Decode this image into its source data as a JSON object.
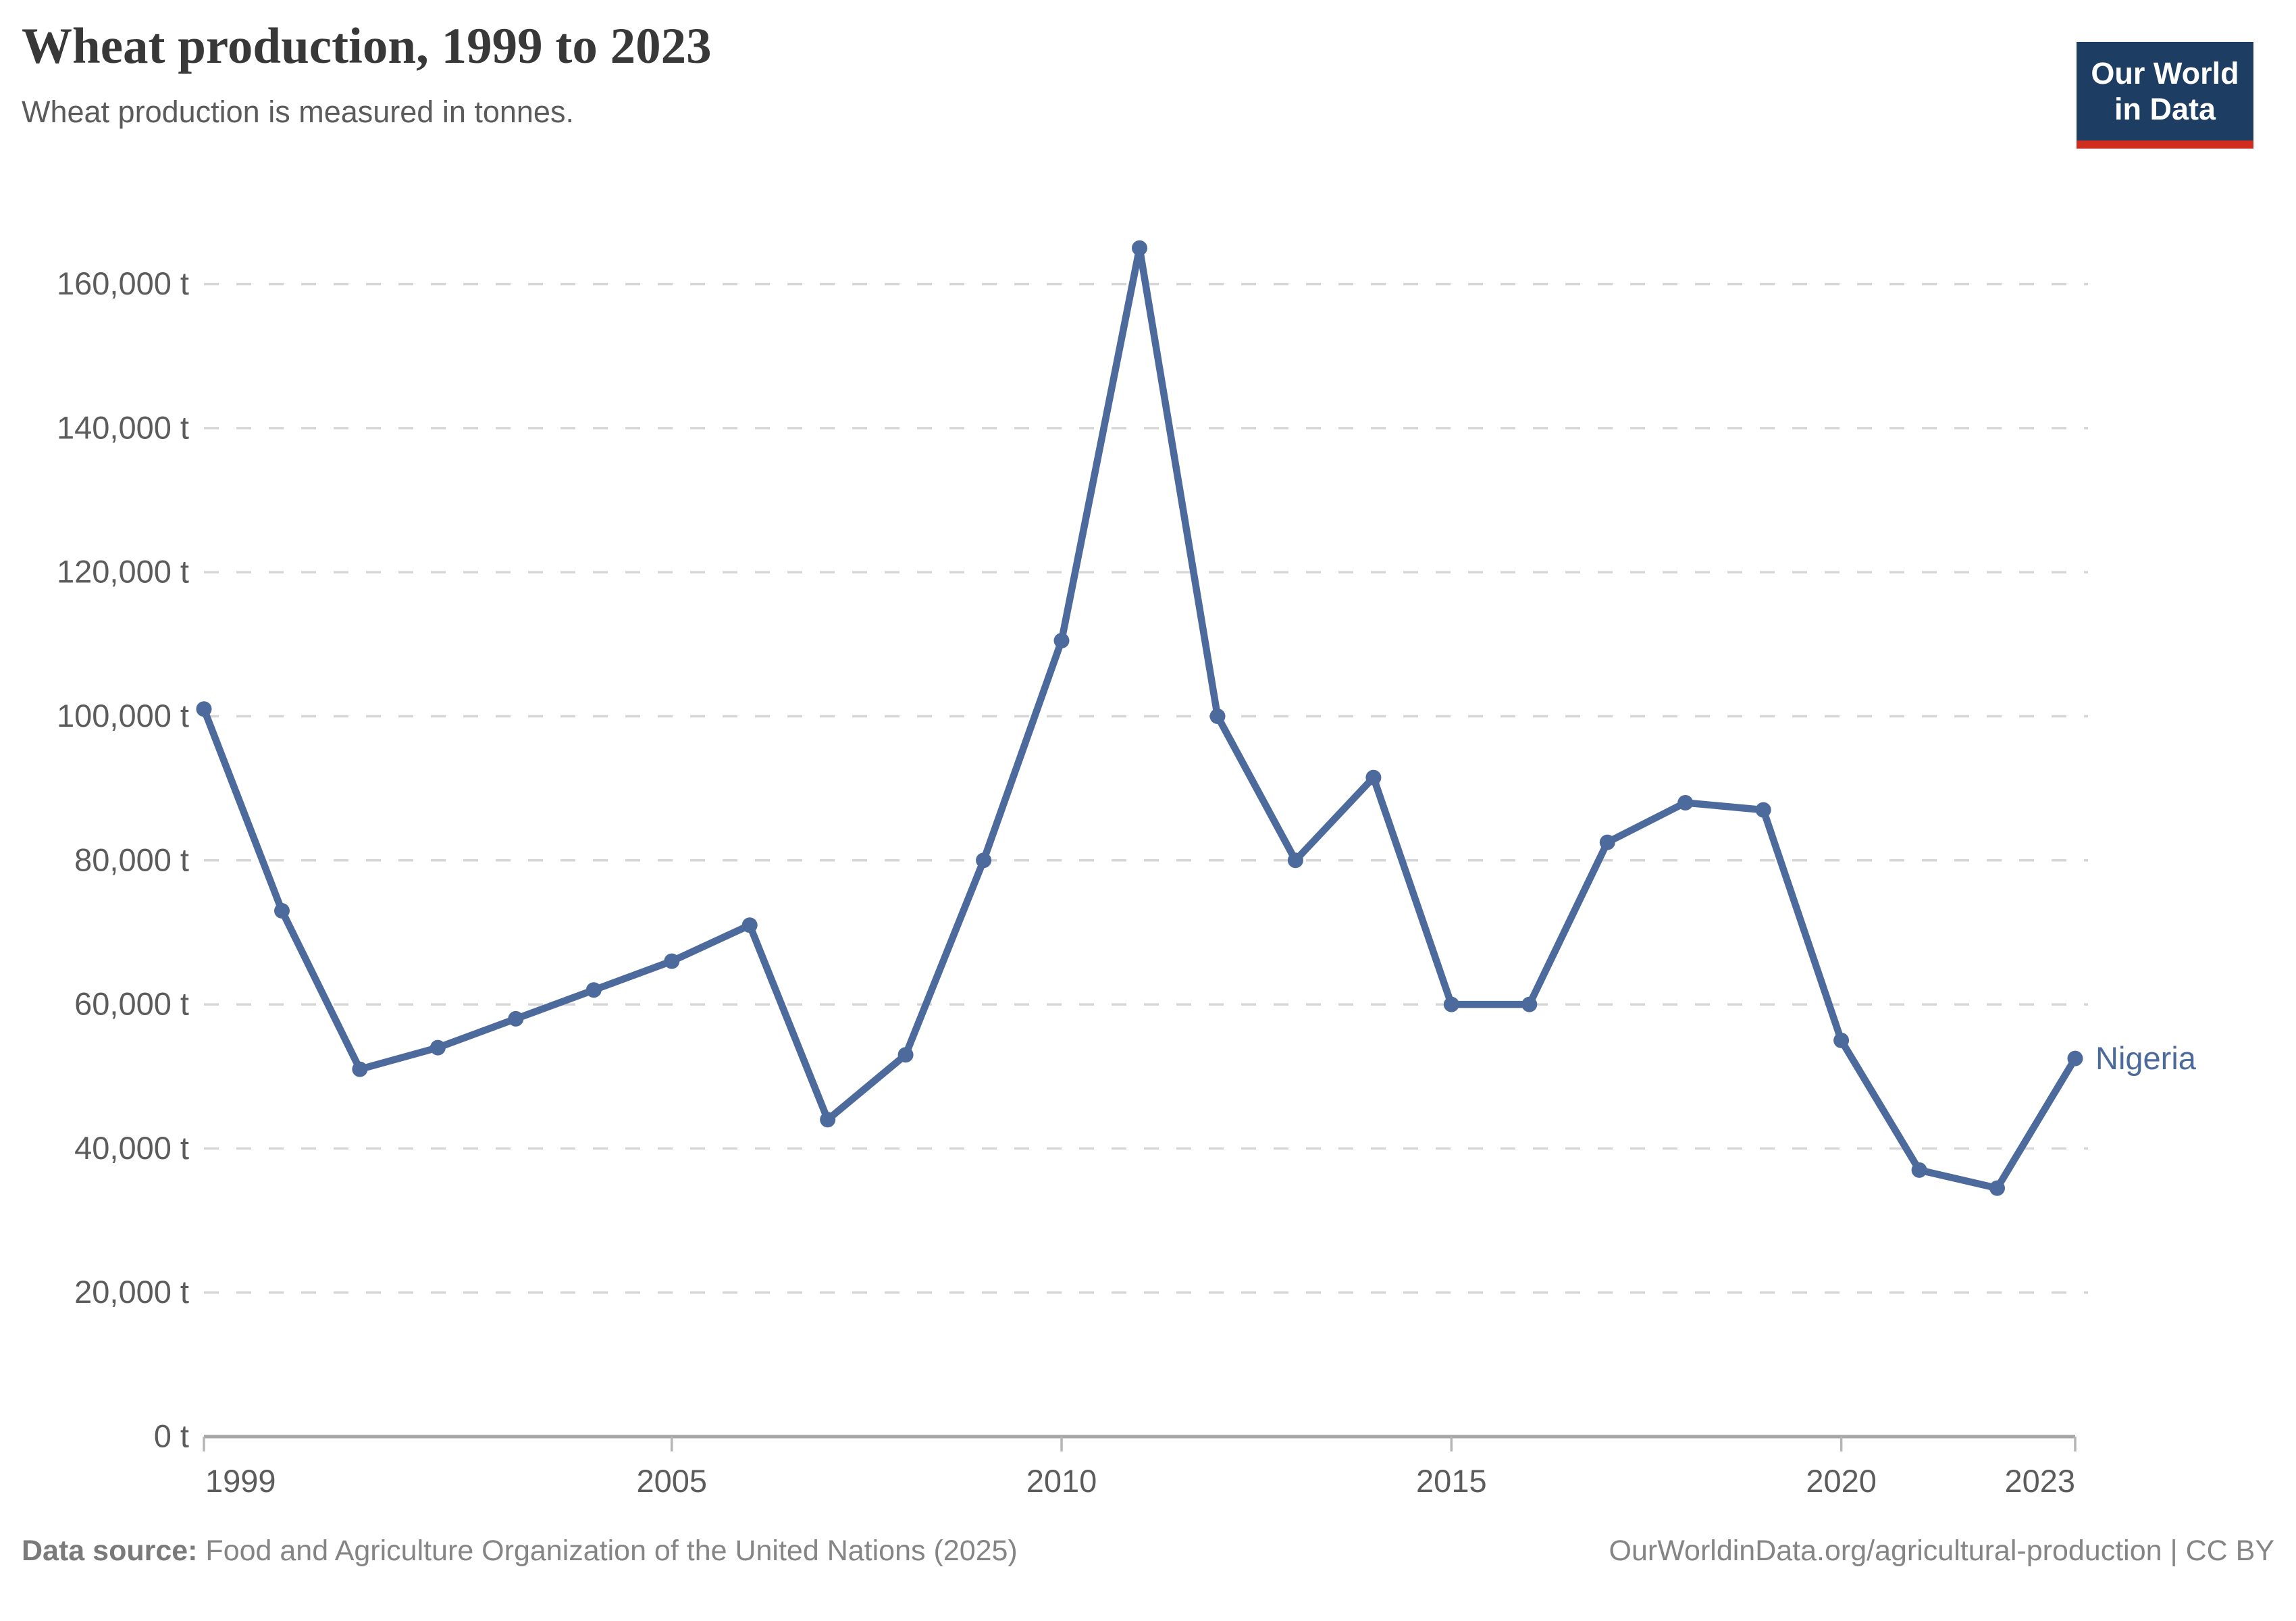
{
  "header": {
    "title": "Wheat production, 1999 to 2023",
    "subtitle": "Wheat production is measured in tonnes.",
    "logo": {
      "line1": "Our World",
      "line2": "in Data"
    }
  },
  "chart_data": {
    "type": "line",
    "title": "Wheat production, 1999 to 2023",
    "xlabel": "",
    "ylabel": "",
    "unit_suffix": " t",
    "x": [
      1999,
      2000,
      2001,
      2002,
      2003,
      2004,
      2005,
      2006,
      2007,
      2008,
      2009,
      2010,
      2011,
      2012,
      2013,
      2014,
      2015,
      2016,
      2017,
      2018,
      2019,
      2020,
      2021,
      2022,
      2023
    ],
    "series": [
      {
        "name": "Nigeria",
        "values": [
          101000,
          73000,
          51000,
          54000,
          58000,
          62000,
          66000,
          71000,
          44000,
          53000,
          80000,
          110500,
          165000,
          100000,
          80000,
          91500,
          60000,
          60000,
          82500,
          88000,
          87000,
          55000,
          37000,
          34500,
          52500
        ]
      }
    ],
    "ylim": [
      0,
      165000
    ],
    "y_ticks": [
      0,
      20000,
      40000,
      60000,
      80000,
      100000,
      120000,
      140000,
      160000
    ],
    "x_ticks": [
      1999,
      2005,
      2010,
      2015,
      2020,
      2023
    ],
    "grid": "horizontal-dashed",
    "legend_position": "end-of-line-label"
  },
  "colors": {
    "line": "#4C6A9C",
    "series_label": "#4C6A9C",
    "grid": "#d6d6d6",
    "axis": "#a6a6a6",
    "tick": "#b5b5b5",
    "tick_text": "#5c5c5c",
    "logo_bg": "#1d3d63",
    "logo_bar": "#cf2d20"
  },
  "footer": {
    "source_label": "Data source:",
    "source_text": " Food and Agriculture Organization of the United Nations (2025)",
    "link_text": "OurWorldinData.org/agricultural-production | CC BY"
  }
}
